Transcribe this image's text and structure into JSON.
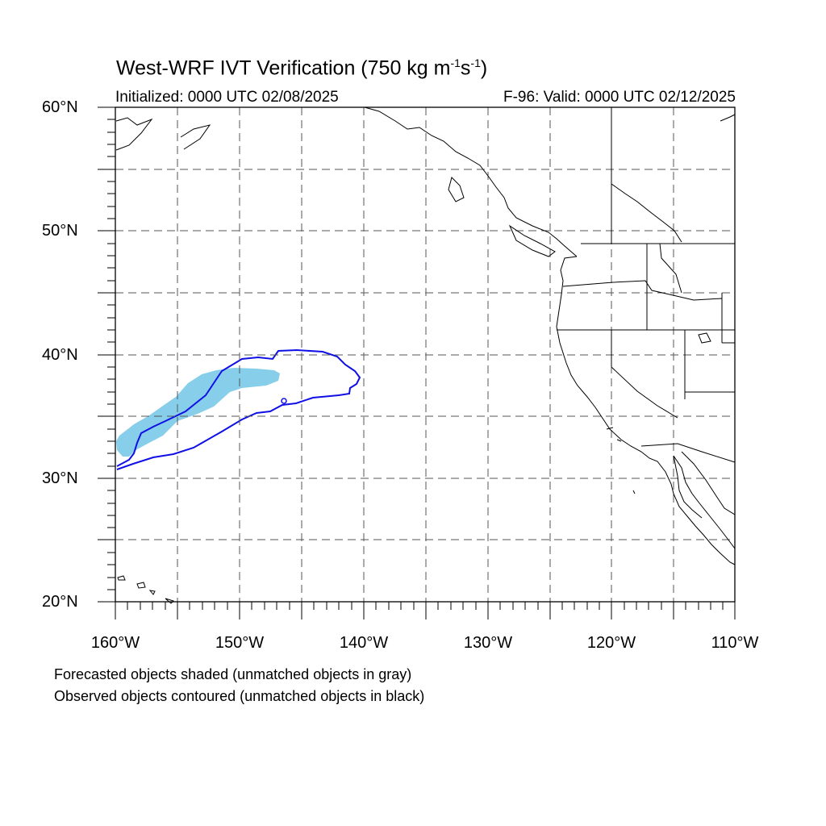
{
  "title": {
    "main": "West-WRF IVT Verification (750 kg m",
    "exp1": "-1",
    "mid": "s",
    "exp2": "-1",
    "close": ")"
  },
  "initialized": "Initialized: 0000 UTC 02/08/2025",
  "valid": "F-96: Valid: 0000 UTC 02/12/2025",
  "lat_labels": [
    "20°N",
    "30°N",
    "40°N",
    "50°N",
    "60°N"
  ],
  "lon_labels": [
    "160°W",
    "150°W",
    "140°W",
    "130°W",
    "120°W",
    "110°W"
  ],
  "notes": [
    "Forecasted objects shaded (unmatched objects in gray)",
    "Observed objects contoured (unmatched objects in black)"
  ],
  "map": {
    "lon_range": [
      -160,
      -110
    ],
    "lat_range": [
      20,
      60
    ],
    "grid_spacing_deg": 5,
    "grid_style": "dashed gray",
    "coastlines": "black",
    "forecast_object_color": "#87ceeb",
    "observed_contour_color": "#0000ee"
  }
}
